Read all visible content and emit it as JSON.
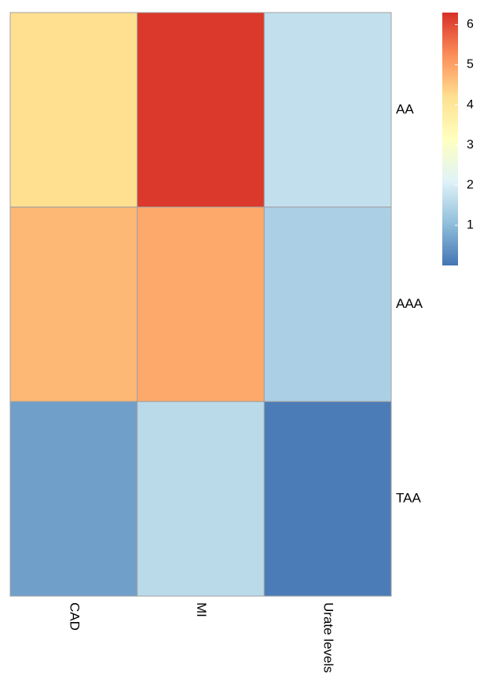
{
  "chart_data": {
    "type": "heatmap",
    "columns": [
      "CAD",
      "MI",
      "Urate levels"
    ],
    "rows": [
      "AA",
      "AAA",
      "TAA"
    ],
    "values": [
      [
        4.2,
        6.2,
        1.7
      ],
      [
        4.7,
        4.9,
        1.4
      ],
      [
        0.6,
        1.6,
        0.1
      ]
    ],
    "colorbar": {
      "min": 0.0,
      "max": 6.3,
      "ticks": [
        1,
        2,
        3,
        4,
        5,
        6
      ],
      "tick_labels": [
        "1",
        "2",
        "3",
        "4",
        "5",
        "6"
      ],
      "palette": [
        "#4575B4",
        "#91BFDB",
        "#E0F3F8",
        "#FFFFBF",
        "#FEE090",
        "#FC8D59",
        "#D73027"
      ]
    },
    "legend_position": "top-right",
    "cell_border_color": "#A0A0A0"
  }
}
